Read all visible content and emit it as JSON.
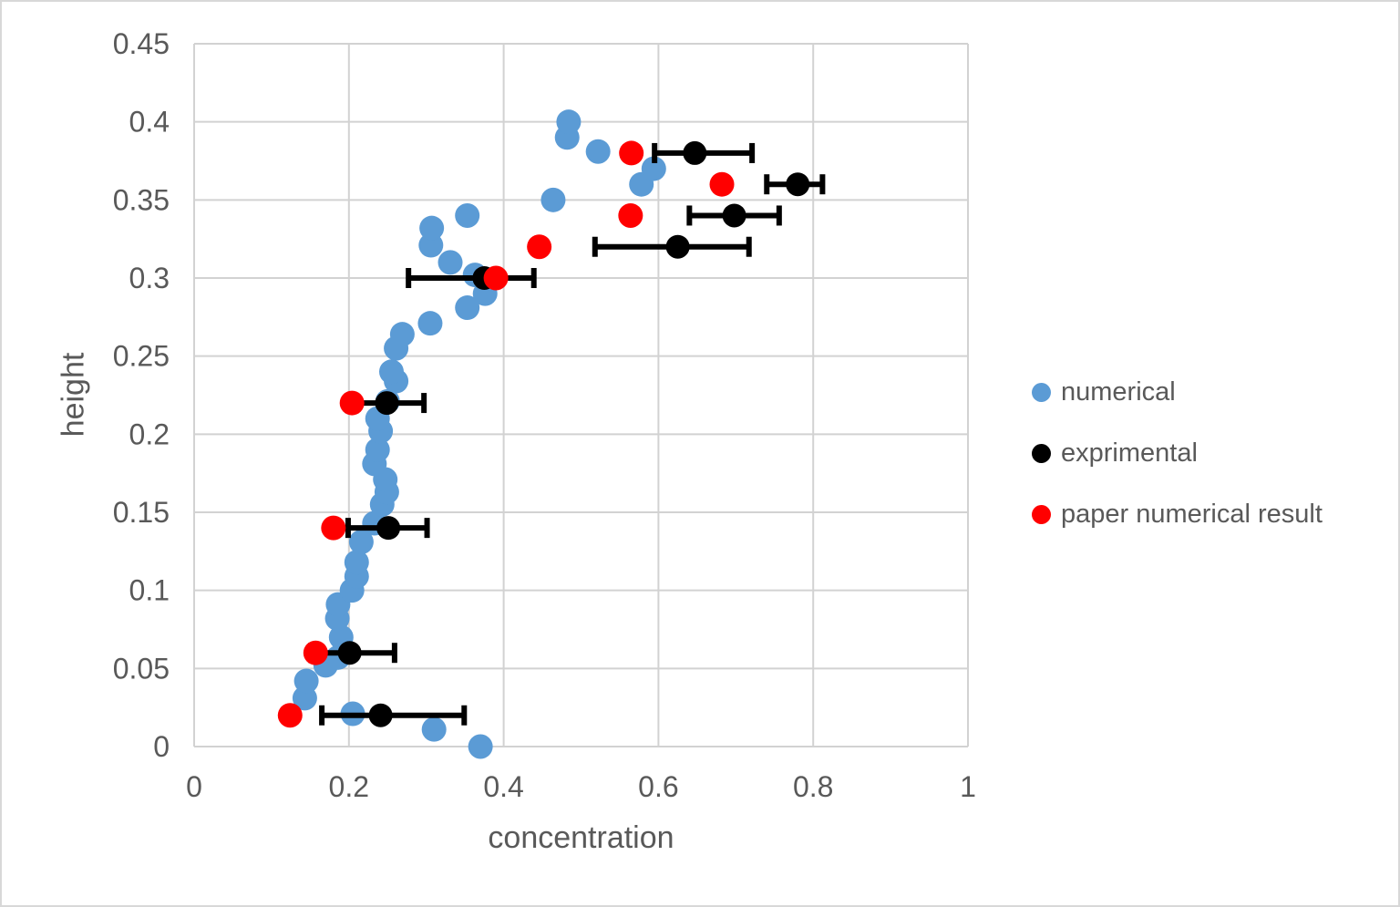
{
  "figure": {
    "background": "#FFFFFF",
    "border_color": "#D8D8D8"
  },
  "style": {
    "grid_color": "#D2D2D2",
    "axis_text_color": "#595959"
  },
  "chart_data": {
    "type": "scatter",
    "xlabel": "concentration",
    "ylabel": "height",
    "xlim": [
      0,
      1
    ],
    "ylim": [
      0,
      0.45
    ],
    "grid": true,
    "legend_position": "right",
    "x_ticks": [
      {
        "value": 0,
        "label": "0"
      },
      {
        "value": 0.2,
        "label": "0.2"
      },
      {
        "value": 0.4,
        "label": "0.4"
      },
      {
        "value": 0.6,
        "label": "0.6"
      },
      {
        "value": 0.8,
        "label": "0.8"
      },
      {
        "value": 1,
        "label": "1"
      }
    ],
    "y_ticks": [
      {
        "value": 0,
        "label": "0"
      },
      {
        "value": 0.05,
        "label": "0.05"
      },
      {
        "value": 0.1,
        "label": "0.1"
      },
      {
        "value": 0.15,
        "label": "0.15"
      },
      {
        "value": 0.2,
        "label": "0.2"
      },
      {
        "value": 0.25,
        "label": "0.25"
      },
      {
        "value": 0.3,
        "label": "0.3"
      },
      {
        "value": 0.35,
        "label": "0.35"
      },
      {
        "value": 0.4,
        "label": "0.4"
      },
      {
        "value": 0.45,
        "label": "0.45"
      }
    ],
    "series": [
      {
        "name": "numerical",
        "color": "#5B9BD5",
        "marker": "circle",
        "marker_radius": 13.5,
        "points": [
          [
            0.37,
            0.0
          ],
          [
            0.31,
            0.011
          ],
          [
            0.205,
            0.021
          ],
          [
            0.143,
            0.031
          ],
          [
            0.145,
            0.042
          ],
          [
            0.17,
            0.052
          ],
          [
            0.186,
            0.057
          ],
          [
            0.19,
            0.07
          ],
          [
            0.185,
            0.082
          ],
          [
            0.186,
            0.091
          ],
          [
            0.204,
            0.1
          ],
          [
            0.21,
            0.109
          ],
          [
            0.21,
            0.118
          ],
          [
            0.216,
            0.131
          ],
          [
            0.233,
            0.143
          ],
          [
            0.243,
            0.155
          ],
          [
            0.249,
            0.163
          ],
          [
            0.247,
            0.171
          ],
          [
            0.233,
            0.181
          ],
          [
            0.237,
            0.19
          ],
          [
            0.241,
            0.202
          ],
          [
            0.237,
            0.21
          ],
          [
            0.25,
            0.221
          ],
          [
            0.261,
            0.234
          ],
          [
            0.255,
            0.24
          ],
          [
            0.261,
            0.255
          ],
          [
            0.269,
            0.264
          ],
          [
            0.305,
            0.271
          ],
          [
            0.353,
            0.281
          ],
          [
            0.376,
            0.29
          ],
          [
            0.363,
            0.302
          ],
          [
            0.331,
            0.31
          ],
          [
            0.306,
            0.321
          ],
          [
            0.307,
            0.332
          ],
          [
            0.353,
            0.34
          ],
          [
            0.464,
            0.35
          ],
          [
            0.578,
            0.36
          ],
          [
            0.594,
            0.37
          ],
          [
            0.522,
            0.381
          ],
          [
            0.482,
            0.39
          ],
          [
            0.484,
            0.4
          ]
        ]
      },
      {
        "name": "exprimental",
        "color": "#000000",
        "marker": "circle",
        "marker_radius": 13,
        "error_bars": "x",
        "points": [
          [
            0.241,
            0.02,
            0.165,
            0.349
          ],
          [
            0.201,
            0.06,
            0.151,
            0.259
          ],
          [
            0.251,
            0.14,
            0.199,
            0.301
          ],
          [
            0.249,
            0.22,
            0.198,
            0.297
          ],
          [
            0.375,
            0.3,
            0.277,
            0.439
          ],
          [
            0.625,
            0.32,
            0.518,
            0.717
          ],
          [
            0.698,
            0.34,
            0.64,
            0.756
          ],
          [
            0.78,
            0.36,
            0.74,
            0.812
          ],
          [
            0.647,
            0.38,
            0.595,
            0.721
          ]
        ]
      },
      {
        "name": "paper numerical result",
        "color": "#FF0000",
        "marker": "circle",
        "marker_radius": 13.5,
        "points": [
          [
            0.124,
            0.02
          ],
          [
            0.157,
            0.06
          ],
          [
            0.18,
            0.14
          ],
          [
            0.204,
            0.22
          ],
          [
            0.39,
            0.3
          ],
          [
            0.446,
            0.32
          ],
          [
            0.564,
            0.34
          ],
          [
            0.682,
            0.36
          ],
          [
            0.565,
            0.38
          ]
        ]
      }
    ]
  }
}
